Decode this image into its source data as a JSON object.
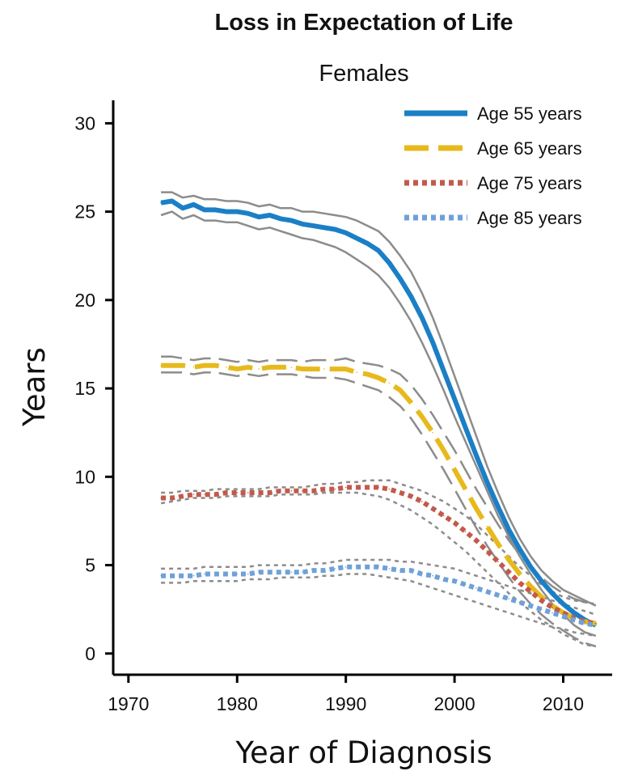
{
  "chart_data": {
    "type": "line",
    "title": "Loss in Expectation of Life",
    "subtitle": "Females",
    "xlabel": "Year of Diagnosis",
    "ylabel": "Years",
    "xlim": [
      1968.6,
      2014.5
    ],
    "ylim": [
      -1.2,
      31.3
    ],
    "x_ticks": [
      1970,
      1980,
      1990,
      2000,
      2010
    ],
    "y_ticks": [
      0,
      5,
      10,
      15,
      20,
      25,
      30
    ],
    "x_tick_labels": [
      "1970",
      "1980",
      "1990",
      "2000",
      "2010"
    ],
    "y_tick_labels": [
      "0",
      "5",
      "10",
      "15",
      "20",
      "25",
      "30"
    ],
    "legend_position": "top-right",
    "ci_color": "#8c8c8c",
    "series": [
      {
        "name": "Age 55 years",
        "color": "#1b7fc6",
        "style": "solid",
        "x": [
          1973,
          1974,
          1975,
          1976,
          1977,
          1978,
          1979,
          1980,
          1981,
          1982,
          1983,
          1984,
          1985,
          1986,
          1987,
          1988,
          1989,
          1990,
          1991,
          1992,
          1993,
          1994,
          1995,
          1996,
          1997,
          1998,
          1999,
          2000,
          2001,
          2002,
          2003,
          2004,
          2005,
          2006,
          2007,
          2008,
          2009,
          2010,
          2011,
          2012,
          2013
        ],
        "values": [
          25.5,
          25.6,
          25.2,
          25.4,
          25.1,
          25.1,
          25.0,
          25.0,
          24.9,
          24.7,
          24.8,
          24.6,
          24.5,
          24.3,
          24.2,
          24.1,
          24.0,
          23.8,
          23.5,
          23.2,
          22.8,
          22.1,
          21.2,
          20.2,
          19.0,
          17.6,
          16.0,
          14.4,
          12.8,
          11.2,
          9.7,
          8.3,
          7.0,
          5.9,
          4.9,
          4.1,
          3.4,
          2.8,
          2.3,
          1.9,
          1.6
        ],
        "lower": [
          24.8,
          25.0,
          24.6,
          24.8,
          24.5,
          24.5,
          24.4,
          24.4,
          24.2,
          24.0,
          24.1,
          23.9,
          23.7,
          23.5,
          23.4,
          23.2,
          23.0,
          22.7,
          22.3,
          21.9,
          21.4,
          20.7,
          19.8,
          18.8,
          17.6,
          16.3,
          14.9,
          13.4,
          12.0,
          10.6,
          9.2,
          7.8,
          6.6,
          5.5,
          4.5,
          3.6,
          2.8,
          2.2,
          1.6,
          1.2,
          1.0
        ],
        "upper": [
          26.1,
          26.1,
          25.8,
          25.9,
          25.7,
          25.7,
          25.6,
          25.6,
          25.5,
          25.3,
          25.4,
          25.2,
          25.2,
          25.0,
          25.0,
          24.9,
          24.8,
          24.7,
          24.5,
          24.2,
          23.9,
          23.3,
          22.5,
          21.6,
          20.4,
          19.0,
          17.4,
          15.7,
          14.0,
          12.3,
          10.6,
          9.1,
          7.7,
          6.5,
          5.5,
          4.7,
          4.1,
          3.6,
          3.3,
          3.0,
          2.7
        ]
      },
      {
        "name": "Age 65 years",
        "color": "#e8b91c",
        "style": "dashed",
        "x": [
          1973,
          1974,
          1975,
          1976,
          1977,
          1978,
          1979,
          1980,
          1981,
          1982,
          1983,
          1984,
          1985,
          1986,
          1987,
          1988,
          1989,
          1990,
          1991,
          1992,
          1993,
          1994,
          1995,
          1996,
          1997,
          1998,
          1999,
          2000,
          2001,
          2002,
          2003,
          2004,
          2005,
          2006,
          2007,
          2008,
          2009,
          2010,
          2011,
          2012,
          2013
        ],
        "values": [
          16.3,
          16.3,
          16.3,
          16.2,
          16.3,
          16.3,
          16.2,
          16.1,
          16.2,
          16.1,
          16.2,
          16.2,
          16.2,
          16.1,
          16.1,
          16.1,
          16.1,
          16.1,
          15.9,
          15.8,
          15.6,
          15.3,
          14.9,
          14.2,
          13.4,
          12.5,
          11.5,
          10.4,
          9.3,
          8.2,
          7.2,
          6.2,
          5.3,
          4.5,
          3.8,
          3.2,
          2.7,
          2.3,
          2.0,
          1.8,
          1.7
        ],
        "lower": [
          15.9,
          15.9,
          15.9,
          15.8,
          15.9,
          15.9,
          15.8,
          15.7,
          15.8,
          15.7,
          15.8,
          15.8,
          15.8,
          15.7,
          15.6,
          15.6,
          15.6,
          15.5,
          15.3,
          15.1,
          14.9,
          14.5,
          14.0,
          13.3,
          12.4,
          11.4,
          10.4,
          9.3,
          8.2,
          7.1,
          6.1,
          5.2,
          4.3,
          3.5,
          2.8,
          2.2,
          1.7,
          1.3,
          0.9,
          0.6,
          0.4
        ],
        "upper": [
          16.8,
          16.8,
          16.7,
          16.6,
          16.7,
          16.7,
          16.6,
          16.5,
          16.6,
          16.5,
          16.6,
          16.6,
          16.6,
          16.5,
          16.6,
          16.6,
          16.6,
          16.7,
          16.5,
          16.4,
          16.3,
          16.1,
          15.8,
          15.2,
          14.4,
          13.5,
          12.5,
          11.5,
          10.4,
          9.3,
          8.3,
          7.3,
          6.4,
          5.6,
          4.9,
          4.3,
          3.8,
          3.4,
          3.1,
          2.9,
          2.8
        ]
      },
      {
        "name": "Age 75 years",
        "color": "#c25a4c",
        "style": "dotted",
        "x": [
          1973,
          1974,
          1975,
          1976,
          1977,
          1978,
          1979,
          1980,
          1981,
          1982,
          1983,
          1984,
          1985,
          1986,
          1987,
          1988,
          1989,
          1990,
          1991,
          1992,
          1993,
          1994,
          1995,
          1996,
          1997,
          1998,
          1999,
          2000,
          2001,
          2002,
          2003,
          2004,
          2005,
          2006,
          2007,
          2008,
          2009,
          2010,
          2011,
          2012,
          2013
        ],
        "values": [
          8.8,
          8.8,
          8.9,
          9.0,
          9.0,
          9.0,
          9.1,
          9.1,
          9.1,
          9.1,
          9.1,
          9.2,
          9.2,
          9.2,
          9.2,
          9.3,
          9.3,
          9.4,
          9.4,
          9.4,
          9.4,
          9.3,
          9.1,
          8.9,
          8.6,
          8.2,
          7.8,
          7.4,
          6.9,
          6.4,
          5.8,
          5.2,
          4.6,
          4.0,
          3.5,
          3.0,
          2.6,
          2.3,
          2.0,
          1.8,
          1.7
        ],
        "lower": [
          8.5,
          8.6,
          8.7,
          8.8,
          8.8,
          8.8,
          8.9,
          8.9,
          8.9,
          8.9,
          8.9,
          9.0,
          9.0,
          9.0,
          9.0,
          9.1,
          9.1,
          9.1,
          9.1,
          9.0,
          8.9,
          8.7,
          8.4,
          8.1,
          7.7,
          7.3,
          6.8,
          6.3,
          5.8,
          5.2,
          4.6,
          4.0,
          3.4,
          2.9,
          2.4,
          1.9,
          1.5,
          1.1,
          0.8,
          0.5,
          0.4
        ],
        "upper": [
          9.1,
          9.1,
          9.2,
          9.2,
          9.2,
          9.3,
          9.3,
          9.3,
          9.3,
          9.3,
          9.4,
          9.4,
          9.4,
          9.4,
          9.5,
          9.6,
          9.6,
          9.7,
          9.7,
          9.8,
          9.8,
          9.8,
          9.6,
          9.4,
          9.2,
          8.9,
          8.6,
          8.2,
          7.8,
          7.3,
          6.7,
          6.1,
          5.5,
          4.9,
          4.4,
          3.9,
          3.5,
          3.2,
          3.0,
          2.9,
          2.8
        ]
      },
      {
        "name": "Age 85 years",
        "color": "#6fa1d8",
        "style": "dotted",
        "x": [
          1973,
          1974,
          1975,
          1976,
          1977,
          1978,
          1979,
          1980,
          1981,
          1982,
          1983,
          1984,
          1985,
          1986,
          1987,
          1988,
          1989,
          1990,
          1991,
          1992,
          1993,
          1994,
          1995,
          1996,
          1997,
          1998,
          1999,
          2000,
          2001,
          2002,
          2003,
          2004,
          2005,
          2006,
          2007,
          2008,
          2009,
          2010,
          2011,
          2012,
          2013
        ],
        "values": [
          4.4,
          4.4,
          4.4,
          4.4,
          4.5,
          4.5,
          4.5,
          4.5,
          4.5,
          4.6,
          4.6,
          4.6,
          4.6,
          4.6,
          4.7,
          4.7,
          4.8,
          4.9,
          4.9,
          4.9,
          4.9,
          4.8,
          4.7,
          4.7,
          4.5,
          4.4,
          4.2,
          4.1,
          3.9,
          3.7,
          3.5,
          3.3,
          3.1,
          2.9,
          2.7,
          2.5,
          2.3,
          2.1,
          1.9,
          1.7,
          1.6
        ],
        "lower": [
          4.0,
          4.0,
          4.0,
          4.1,
          4.1,
          4.1,
          4.1,
          4.1,
          4.2,
          4.2,
          4.2,
          4.3,
          4.3,
          4.3,
          4.3,
          4.4,
          4.4,
          4.5,
          4.5,
          4.5,
          4.4,
          4.3,
          4.2,
          4.1,
          3.9,
          3.7,
          3.5,
          3.3,
          3.1,
          2.9,
          2.7,
          2.5,
          2.3,
          2.1,
          1.9,
          1.7,
          1.5,
          1.4,
          1.2,
          1.1,
          1.0
        ],
        "upper": [
          4.8,
          4.8,
          4.8,
          4.8,
          4.9,
          4.9,
          4.9,
          4.9,
          4.9,
          5.0,
          5.0,
          5.0,
          5.0,
          5.0,
          5.1,
          5.1,
          5.2,
          5.3,
          5.3,
          5.3,
          5.3,
          5.3,
          5.2,
          5.2,
          5.1,
          5.0,
          4.9,
          4.8,
          4.6,
          4.4,
          4.2,
          4.0,
          3.8,
          3.6,
          3.4,
          3.2,
          3.0,
          2.8,
          2.6,
          2.4,
          2.2
        ]
      }
    ]
  }
}
